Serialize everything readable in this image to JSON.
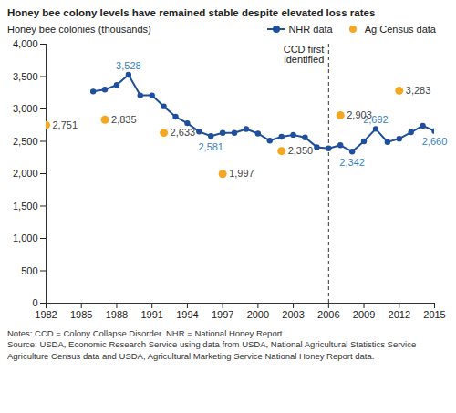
{
  "chart_data": {
    "type": "line",
    "title": "Honey bee colony levels have remained stable despite elevated loss rates",
    "y_label": "Honey bee colonies (thousands)",
    "series": [
      {
        "name": "NHR data",
        "type": "line",
        "marker": "circle",
        "color": "#1f4e9c",
        "label_color": "#3a7fc1",
        "x": [
          1986,
          1987,
          1988,
          1989,
          1990,
          1991,
          1992,
          1993,
          1994,
          1995,
          1996,
          1997,
          1998,
          1999,
          2000,
          2001,
          2002,
          2003,
          2004,
          2005,
          2006,
          2007,
          2008,
          2009,
          2010,
          2011,
          2012,
          2013,
          2014,
          2015
        ],
        "values": [
          3270,
          3300,
          3370,
          3528,
          3210,
          3210,
          3040,
          2880,
          2780,
          2650,
          2581,
          2630,
          2630,
          2690,
          2620,
          2510,
          2570,
          2600,
          2560,
          2410,
          2390,
          2440,
          2342,
          2500,
          2692,
          2490,
          2540,
          2640,
          2740,
          2660
        ],
        "value_labels": [
          null,
          null,
          null,
          "3,528",
          null,
          null,
          null,
          null,
          null,
          null,
          "2,581",
          null,
          null,
          null,
          null,
          null,
          null,
          null,
          null,
          null,
          null,
          null,
          "2,342",
          null,
          "2,692",
          null,
          null,
          null,
          null,
          "2,660"
        ]
      },
      {
        "name": "Ag Census data",
        "type": "scatter",
        "marker": "circle",
        "color": "#f5a623",
        "label_color": "#444444",
        "x": [
          1982,
          1987,
          1992,
          1997,
          2002,
          2007,
          2012
        ],
        "values": [
          2751,
          2835,
          2633,
          1997,
          2350,
          2903,
          3283
        ],
        "value_labels": [
          "2,751",
          "2,835",
          "2,633",
          "1,997",
          "2,350",
          "2,903",
          "3,283"
        ]
      }
    ],
    "xlim": [
      1982,
      2015
    ],
    "xticks": [
      1982,
      1985,
      1988,
      1991,
      1994,
      1997,
      2000,
      2003,
      2006,
      2009,
      2012,
      2015
    ],
    "ylim": [
      0,
      4000
    ],
    "yticks": [
      0,
      500,
      {
        "value": 1000,
        "label": "1,000"
      },
      {
        "value": 1500,
        "label": "1,500"
      },
      {
        "value": 2000,
        "label": "2,000"
      },
      {
        "value": 2500,
        "label": "2,500"
      },
      {
        "value": 3000,
        "label": "3,000"
      },
      {
        "value": 3500,
        "label": "3,500"
      },
      {
        "value": 4000,
        "label": "4,000"
      }
    ],
    "grid": false,
    "legend": "top-right",
    "annotations": [
      {
        "x": 2006,
        "text": "CCD first identified",
        "line_style": "dashed"
      }
    ],
    "notes": "Notes: CCD = Colony Collapse Disorder. NHR = National Honey Report.",
    "source": "Source: USDA, Economic Research Service using data from USDA, National Agricultural Statistics Service Agriculture Census data and USDA, Agricultural Marketing Service National Honey Report data."
  }
}
